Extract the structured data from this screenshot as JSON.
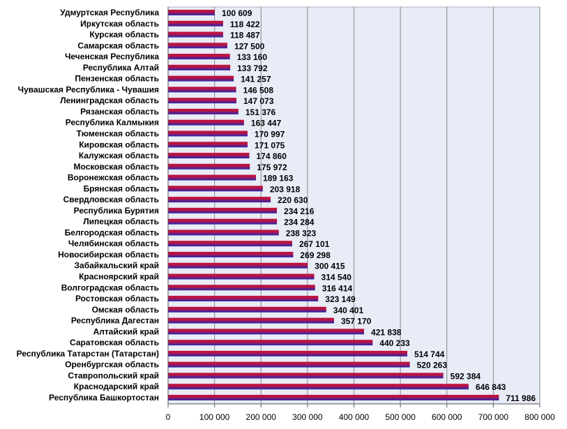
{
  "chart_data": {
    "type": "bar",
    "orientation": "horizontal",
    "title": "",
    "xlabel": "",
    "ylabel": "",
    "xlim": [
      0,
      800000
    ],
    "x_ticks": [
      "0",
      "100 000",
      "200 000",
      "300 000",
      "400 000",
      "500 000",
      "600 000",
      "700 000",
      "800 000"
    ],
    "grid": "vertical",
    "legend": "none",
    "colors": {
      "plot_background": "#e8ecf7",
      "bar_top": "#c4123a",
      "bar_mid": "#7a1a78",
      "bar_bottom": "#2a2aa8",
      "gridline": "#888888"
    },
    "categories": [
      "Удмуртская Республика",
      "Иркутская область",
      "Курская область",
      "Самарская область",
      "Чеченская Республика",
      "Республика Алтай",
      "Пензенская область",
      "Чувашская Республика - Чувашия",
      "Ленинградская область",
      "Рязанская область",
      "Республика Калмыкия",
      "Тюменская область",
      "Кировская область",
      "Калужская область",
      "Московская область",
      "Воронежская область",
      "Брянская область",
      "Свердловская область",
      "Республика Бурятия",
      "Липецкая область",
      "Белгородская область",
      "Челябинская область",
      "Новосибирская область",
      "Забайкальский край",
      "Красноярский край",
      "Волгоградская область",
      "Ростовская область",
      "Омская область",
      "Республика Дагестан",
      "Алтайский край",
      "Саратовская область",
      "Республика Татарстан (Татарстан)",
      "Оренбургская область",
      "Ставропольский край",
      "Краснодарский край",
      "Республика Башкортостан"
    ],
    "values": [
      100609,
      118422,
      118487,
      127500,
      133160,
      133792,
      141257,
      146508,
      147073,
      151376,
      163447,
      170997,
      171075,
      174860,
      175972,
      189163,
      203918,
      220630,
      234216,
      234284,
      238323,
      267101,
      269298,
      300415,
      314540,
      316414,
      323149,
      340401,
      357170,
      421838,
      440233,
      514744,
      520263,
      592384,
      646843,
      711986
    ],
    "value_labels": [
      "100 609",
      "118 422",
      "118 487",
      "127 500",
      "133 160",
      "133 792",
      "141 257",
      "146 508",
      "147 073",
      "151 376",
      "163 447",
      "170 997",
      "171 075",
      "174 860",
      "175 972",
      "189 163",
      "203 918",
      "220 630",
      "234 216",
      "234 284",
      "238 323",
      "267 101",
      "269 298",
      "300 415",
      "314 540",
      "316 414",
      "323 149",
      "340 401",
      "357 170",
      "421 838",
      "440 233",
      "514 744",
      "520 263",
      "592 384",
      "646 843",
      "711 986"
    ]
  }
}
